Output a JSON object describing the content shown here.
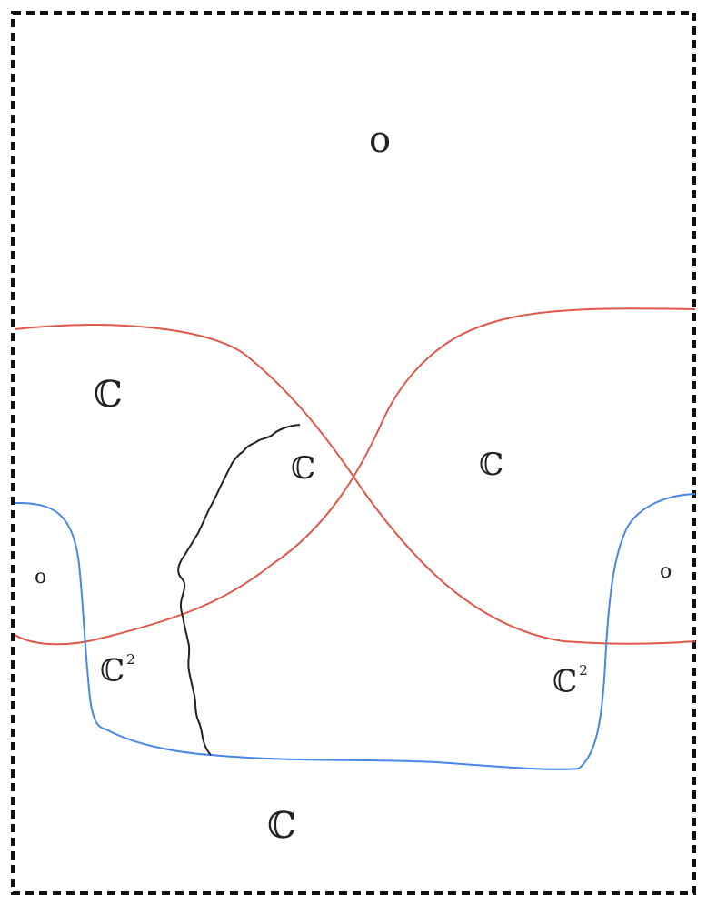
{
  "colors": {
    "frame": "#111111",
    "red_curve": "#e0584a",
    "blue_curve": "#4a86e8",
    "black_curve": "#222222",
    "text": "#222222"
  },
  "regions": {
    "top": "o",
    "left_upper": "ℂ",
    "center_small": "ℂ",
    "right_upper": "ℂ",
    "left_lobe": "o",
    "right_lobe": "o",
    "left_lower": {
      "base": "ℂ",
      "exponent": "2"
    },
    "right_lower": {
      "base": "ℂ",
      "exponent": "2"
    },
    "bottom": "ℂ"
  }
}
